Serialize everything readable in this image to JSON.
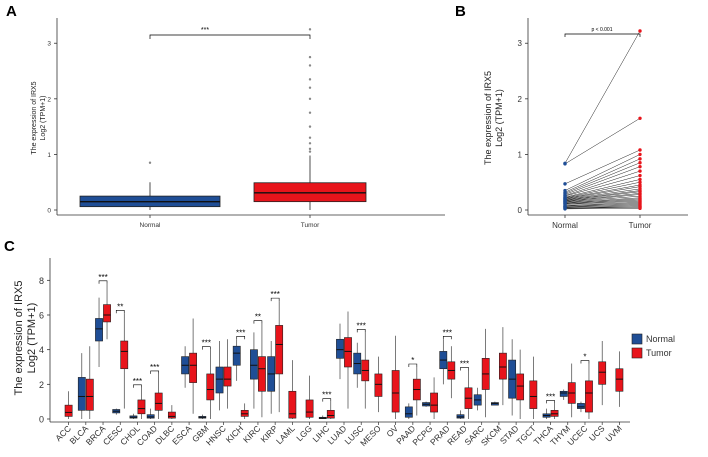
{
  "colors": {
    "normal": "#1f4e96",
    "tumor": "#e8141b",
    "axis": "#333333",
    "outlier": "#888888"
  },
  "chart_data": [
    {
      "panel": "A",
      "type": "box",
      "categories": [
        "Normal",
        "Tumor"
      ],
      "ylabel_line1": "The expression of IRX5",
      "ylabel_line2": "Log2 (TPM+1)",
      "ylim": [
        0,
        3.4
      ],
      "yticks": [
        "0",
        "1",
        "2",
        "3"
      ],
      "significance": "***",
      "boxes": [
        {
          "name": "Normal",
          "q1": 0.06,
          "median": 0.15,
          "q3": 0.25,
          "whisker_low": 0.0,
          "whisker_high": 0.5,
          "outliers": [
            0.85
          ]
        },
        {
          "name": "Tumor",
          "q1": 0.15,
          "median": 0.31,
          "q3": 0.49,
          "whisker_low": 0.0,
          "whisker_high": 0.98,
          "outliers": [
            1.05,
            1.1,
            1.2,
            1.3,
            1.5,
            1.75,
            2.0,
            2.2,
            2.35,
            2.6,
            2.75,
            3.25
          ]
        }
      ]
    },
    {
      "panel": "B",
      "type": "paired_scatter",
      "categories": [
        "Normal",
        "Tumor"
      ],
      "ylabel_line1": "The expression of IRX5",
      "ylabel_line2": "Log2 (TPM+1)",
      "ylim": [
        0,
        3.4
      ],
      "yticks": [
        "0",
        "1",
        "2",
        "3"
      ],
      "p_label": "p < 0.001",
      "pairs": [
        [
          0.84,
          3.22
        ],
        [
          0.83,
          1.65
        ],
        [
          0.47,
          1.08
        ],
        [
          0.35,
          1.0
        ],
        [
          0.32,
          0.92
        ],
        [
          0.3,
          0.85
        ],
        [
          0.28,
          0.78
        ],
        [
          0.26,
          0.7
        ],
        [
          0.25,
          0.62
        ],
        [
          0.23,
          0.55
        ],
        [
          0.22,
          0.5
        ],
        [
          0.21,
          0.45
        ],
        [
          0.2,
          0.42
        ],
        [
          0.19,
          0.38
        ],
        [
          0.18,
          0.35
        ],
        [
          0.17,
          0.33
        ],
        [
          0.16,
          0.3
        ],
        [
          0.15,
          0.28
        ],
        [
          0.14,
          0.25
        ],
        [
          0.13,
          0.22
        ],
        [
          0.12,
          0.2
        ],
        [
          0.11,
          0.18
        ],
        [
          0.1,
          0.16
        ],
        [
          0.08,
          0.14
        ],
        [
          0.07,
          0.12
        ],
        [
          0.06,
          0.1
        ],
        [
          0.05,
          0.08
        ],
        [
          0.04,
          0.06
        ],
        [
          0.03,
          0.05
        ],
        [
          0.02,
          0.03
        ]
      ]
    },
    {
      "panel": "C",
      "type": "grouped_box",
      "ylabel_line1": "The expression of IRX5",
      "ylabel_line2": "Log2 (TPM+1)",
      "ylim": [
        0,
        9
      ],
      "yticks": [
        "0",
        "2",
        "4",
        "6",
        "8"
      ],
      "legend": [
        "Normal",
        "Tumor"
      ],
      "groups": [
        {
          "name": "ACC",
          "tumor": [
            0.15,
            0.38,
            0.8,
            0,
            1.6
          ]
        },
        {
          "name": "BLCA",
          "normal": [
            0.5,
            1.3,
            2.4,
            0,
            3.8
          ],
          "tumor": [
            0.5,
            1.3,
            2.3,
            0,
            4.2
          ]
        },
        {
          "name": "BRCA",
          "normal": [
            4.5,
            5.2,
            5.8,
            3.0,
            7.0
          ],
          "tumor": [
            5.6,
            6.0,
            6.6,
            4.6,
            7.8
          ],
          "sig": "***"
        },
        {
          "name": "CESC",
          "normal": [
            0.35,
            0.45,
            0.55,
            0.25,
            0.6
          ],
          "tumor": [
            2.9,
            3.9,
            4.5,
            0.6,
            6.1
          ],
          "sig": "**"
        },
        {
          "name": "CHOL",
          "normal": [
            0.05,
            0.1,
            0.18,
            0,
            0.3
          ],
          "tumor": [
            0.3,
            0.6,
            1.1,
            0,
            1.8
          ],
          "sig": "***"
        },
        {
          "name": "COAD",
          "normal": [
            0.05,
            0.12,
            0.25,
            0,
            0.6
          ],
          "tumor": [
            0.5,
            0.9,
            1.5,
            0,
            2.6
          ],
          "sig": "***"
        },
        {
          "name": "DLBC",
          "tumor": [
            0.05,
            0.15,
            0.4,
            0,
            0.8
          ]
        },
        {
          "name": "ESCA",
          "normal": [
            2.6,
            3.1,
            3.6,
            1.8,
            4.2
          ],
          "tumor": [
            2.1,
            3.1,
            3.8,
            0.3,
            5.8
          ]
        },
        {
          "name": "GBM",
          "normal": [
            0.05,
            0.1,
            0.15,
            0,
            0.25
          ],
          "tumor": [
            1.1,
            1.7,
            2.6,
            0,
            4.0
          ],
          "sig": "***"
        },
        {
          "name": "HNSC",
          "normal": [
            1.5,
            2.3,
            3.0,
            0.5,
            4.5
          ],
          "tumor": [
            1.9,
            2.3,
            3.0,
            0.6,
            4.6
          ]
        },
        {
          "name": "KICH",
          "normal": [
            3.1,
            3.8,
            4.2,
            2.2,
            4.6
          ],
          "tumor": [
            0.15,
            0.3,
            0.5,
            0,
            0.9
          ],
          "sig": "***"
        },
        {
          "name": "KIRC",
          "normal": [
            2.3,
            3.1,
            4.0,
            0.6,
            5.0
          ],
          "tumor": [
            1.6,
            2.9,
            3.6,
            0.1,
            5.5
          ],
          "sig": "**"
        },
        {
          "name": "KIRP",
          "normal": [
            1.6,
            2.6,
            3.6,
            0.3,
            4.5
          ],
          "tumor": [
            2.6,
            4.3,
            5.4,
            0.4,
            6.8
          ],
          "sig": "***"
        },
        {
          "name": "LAML",
          "tumor": [
            0.05,
            0.3,
            1.6,
            0,
            3.4
          ]
        },
        {
          "name": "LGG",
          "tumor": [
            0.1,
            0.4,
            1.1,
            0,
            2.5
          ]
        },
        {
          "name": "LIHC",
          "normal": [
            0.02,
            0.05,
            0.1,
            0,
            0.2
          ],
          "tumor": [
            0.05,
            0.2,
            0.5,
            0,
            1.0
          ],
          "sig": "***"
        },
        {
          "name": "LUAD",
          "normal": [
            3.5,
            4.0,
            4.6,
            2.3,
            5.5
          ],
          "tumor": [
            3.0,
            3.9,
            4.7,
            0.6,
            6.2
          ]
        },
        {
          "name": "LUSC",
          "normal": [
            2.6,
            3.2,
            3.8,
            1.8,
            4.4
          ],
          "tumor": [
            2.2,
            2.8,
            3.4,
            0.6,
            5.0
          ],
          "sig": "***"
        },
        {
          "name": "MESO",
          "tumor": [
            1.3,
            2.0,
            2.6,
            0.4,
            3.6
          ]
        },
        {
          "name": "OV",
          "tumor": [
            0.4,
            1.5,
            2.8,
            0,
            4.8
          ]
        },
        {
          "name": "PAAD",
          "normal": [
            0.1,
            0.3,
            0.7,
            0,
            0.9
          ],
          "tumor": [
            1.1,
            1.7,
            2.3,
            0.2,
            3.0
          ],
          "sig": "*"
        },
        {
          "name": "PCPG",
          "normal": [
            0.75,
            0.85,
            0.95,
            0.7,
            1.0
          ],
          "tumor": [
            0.4,
            0.8,
            1.5,
            0,
            2.4
          ]
        },
        {
          "name": "PRAD",
          "normal": [
            2.9,
            3.4,
            3.9,
            2.0,
            4.6
          ],
          "tumor": [
            2.3,
            2.8,
            3.3,
            1.2,
            4.2
          ],
          "sig": "***"
        },
        {
          "name": "READ",
          "normal": [
            0.05,
            0.12,
            0.25,
            0,
            0.5
          ],
          "tumor": [
            0.6,
            1.2,
            1.8,
            0,
            2.8
          ],
          "sig": "***"
        },
        {
          "name": "SARC",
          "normal": [
            0.8,
            1.1,
            1.4,
            0.5,
            1.8
          ],
          "tumor": [
            1.7,
            2.6,
            3.5,
            0.1,
            5.2
          ]
        },
        {
          "name": "SKCM",
          "normal": [
            0.8,
            0.9,
            0.95,
            0.8,
            1.0
          ],
          "tumor": [
            2.3,
            3.0,
            3.8,
            0.8,
            5.3
          ]
        },
        {
          "name": "STAD",
          "normal": [
            1.2,
            2.3,
            3.4,
            0.2,
            4.6
          ],
          "tumor": [
            1.1,
            1.9,
            2.6,
            0,
            4.0
          ]
        },
        {
          "name": "TGCT",
          "tumor": [
            0.6,
            1.3,
            2.2,
            0,
            3.6
          ]
        },
        {
          "name": "THCA",
          "normal": [
            0.1,
            0.2,
            0.3,
            0,
            0.6
          ],
          "tumor": [
            0.15,
            0.3,
            0.5,
            0,
            0.9
          ],
          "sig": "***"
        },
        {
          "name": "THYM",
          "normal": [
            1.3,
            1.5,
            1.6,
            1.1,
            1.7
          ],
          "tumor": [
            0.9,
            1.5,
            2.1,
            0.1,
            3.2
          ]
        },
        {
          "name": "UCEC",
          "normal": [
            0.6,
            0.7,
            0.9,
            0.4,
            1.0
          ],
          "tumor": [
            0.4,
            1.5,
            2.2,
            0,
            3.2
          ],
          "sig": "*"
        },
        {
          "name": "UCS",
          "tumor": [
            2.0,
            2.7,
            3.3,
            0.8,
            4.5
          ]
        },
        {
          "name": "UVM",
          "tumor": [
            1.6,
            2.3,
            2.9,
            0.7,
            3.9
          ]
        }
      ]
    }
  ]
}
